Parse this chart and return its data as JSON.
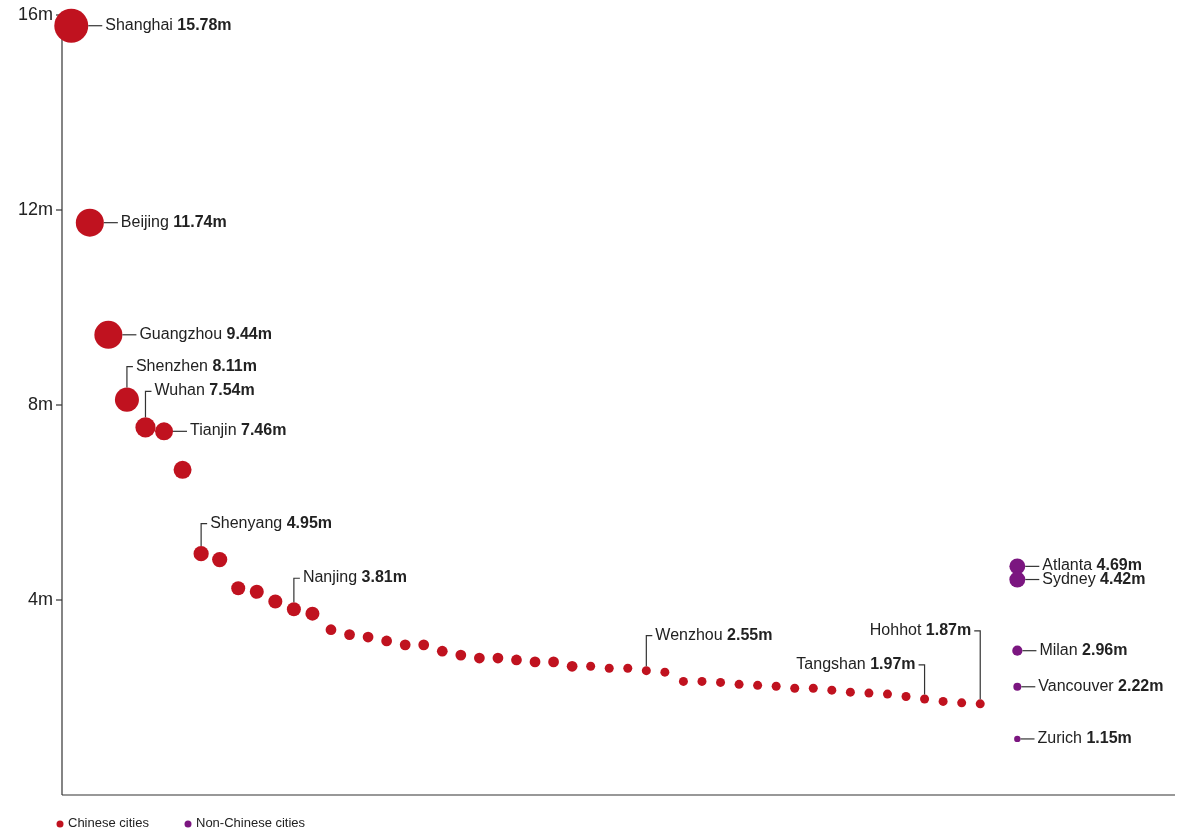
{
  "chart_data": {
    "type": "bubble",
    "categories": [
      null,
      null,
      null,
      null,
      null,
      null,
      null,
      null,
      null,
      null,
      null,
      null,
      null,
      null,
      null,
      null,
      null,
      null,
      null,
      null,
      null,
      null,
      null,
      null,
      null,
      null,
      null,
      null,
      null,
      null,
      null,
      null,
      null,
      null,
      null,
      null,
      null,
      null,
      null,
      null,
      null,
      null,
      null,
      null,
      null,
      null,
      null,
      null,
      null,
      null,
      null,
      null,
      null,
      null,
      null,
      null,
      null,
      null,
      null,
      null
    ],
    "ylim": [
      0,
      16
    ],
    "yticks": [
      {
        "value": 4,
        "label": "4m"
      },
      {
        "value": 8,
        "label": "8m"
      },
      {
        "value": 12,
        "label": "12m"
      },
      {
        "value": 16,
        "label": "16m"
      }
    ],
    "tick_labels": "y",
    "legend": "bottom left",
    "series": [
      {
        "name": "Chinese cities",
        "color": "#c0121f",
        "values": [
          15.78,
          11.74,
          9.44,
          8.11,
          7.54,
          7.46,
          6.67,
          4.95,
          4.83,
          4.24,
          4.17,
          3.97,
          3.81,
          3.72,
          3.39,
          3.29,
          3.24,
          3.16,
          3.08,
          3.08,
          2.95,
          2.87,
          2.81,
          2.81,
          2.77,
          2.73,
          2.73,
          2.64,
          2.64,
          2.6,
          2.6,
          2.55,
          2.52,
          2.33,
          2.33,
          2.31,
          2.27,
          2.25,
          2.23,
          2.19,
          2.19,
          2.15,
          2.11,
          2.09,
          2.07,
          2.02,
          1.97,
          1.92,
          1.89,
          1.87,
          null,
          null,
          null,
          null,
          null,
          null,
          null,
          null,
          null,
          null
        ],
        "sizes": [
          1,
          0.68,
          0.68,
          0.5,
          0.35,
          0.28,
          0.28,
          0.2,
          0.2,
          0.17,
          0.17,
          0.17,
          0.17,
          0.17,
          0.1,
          0.1,
          0.1,
          0.1,
          0.1,
          0.1,
          0.1,
          0.1,
          0.1,
          0.1,
          0.1,
          0.1,
          0.1,
          0.1,
          0.07,
          0.07,
          0.07,
          0.07,
          0.07,
          0.07,
          0.07,
          0.07,
          0.07,
          0.07,
          0.07,
          0.07,
          0.07,
          0.07,
          0.07,
          0.07,
          0.07,
          0.07,
          0.07,
          0.07,
          0.07,
          0.07,
          null,
          null,
          null,
          null,
          null,
          null,
          null,
          null,
          null,
          null
        ]
      },
      {
        "name": "Non-Chinese cities",
        "color": "#7b1680",
        "values": [
          null,
          null,
          null,
          null,
          null,
          null,
          null,
          null,
          null,
          null,
          null,
          null,
          null,
          null,
          null,
          null,
          null,
          null,
          null,
          null,
          null,
          null,
          null,
          null,
          null,
          null,
          null,
          null,
          null,
          null,
          null,
          null,
          null,
          null,
          null,
          null,
          null,
          null,
          null,
          null,
          null,
          null,
          null,
          null,
          null,
          null,
          null,
          null,
          null,
          null,
          null,
          4.69,
          null,
          null,
          null,
          null,
          null,
          null,
          null,
          null
        ],
        "sizes": [
          null,
          null,
          null,
          null,
          null,
          null,
          null,
          null,
          null,
          null,
          null,
          null,
          null,
          null,
          null,
          null,
          null,
          null,
          null,
          null,
          null,
          null,
          null,
          null,
          null,
          null,
          null,
          null,
          null,
          null,
          null,
          null,
          null,
          null,
          null,
          null,
          null,
          null,
          null,
          null,
          null,
          null,
          null,
          null,
          null,
          null,
          null,
          null,
          null,
          null,
          null,
          0.22,
          null,
          null,
          null,
          null,
          null,
          null,
          null,
          null
        ]
      },
      {
        "color": "#7b1680",
        "values": [
          null,
          null,
          null,
          null,
          null,
          null,
          null,
          null,
          null,
          null,
          null,
          null,
          null,
          null,
          null,
          null,
          null,
          null,
          null,
          null,
          null,
          null,
          null,
          null,
          null,
          null,
          null,
          null,
          null,
          null,
          null,
          null,
          null,
          null,
          null,
          null,
          null,
          null,
          null,
          null,
          null,
          null,
          null,
          null,
          null,
          null,
          null,
          null,
          null,
          null,
          null,
          4.42,
          null,
          null,
          null,
          null,
          null,
          null,
          null,
          null
        ],
        "sizes": [
          null,
          null,
          null,
          null,
          null,
          null,
          null,
          null,
          null,
          null,
          null,
          null,
          null,
          null,
          null,
          null,
          null,
          null,
          null,
          null,
          null,
          null,
          null,
          null,
          null,
          null,
          null,
          null,
          null,
          null,
          null,
          null,
          null,
          null,
          null,
          null,
          null,
          null,
          null,
          null,
          null,
          null,
          null,
          null,
          null,
          null,
          null,
          null,
          null,
          null,
          null,
          0.22,
          null,
          null,
          null,
          null,
          null,
          null,
          null,
          null
        ]
      },
      {
        "color": "#7b1680",
        "values": [
          null,
          null,
          null,
          null,
          null,
          null,
          null,
          null,
          null,
          null,
          null,
          null,
          null,
          null,
          null,
          null,
          null,
          null,
          null,
          null,
          null,
          null,
          null,
          null,
          null,
          null,
          null,
          null,
          null,
          null,
          null,
          null,
          null,
          null,
          null,
          null,
          null,
          null,
          null,
          null,
          null,
          null,
          null,
          null,
          null,
          null,
          null,
          null,
          null,
          null,
          null,
          2.96,
          null,
          null,
          null,
          null,
          null,
          null,
          null,
          null
        ],
        "sizes": [
          null,
          null,
          null,
          null,
          null,
          null,
          null,
          null,
          null,
          null,
          null,
          null,
          null,
          null,
          null,
          null,
          null,
          null,
          null,
          null,
          null,
          null,
          null,
          null,
          null,
          null,
          null,
          null,
          null,
          null,
          null,
          null,
          null,
          null,
          null,
          null,
          null,
          null,
          null,
          null,
          null,
          null,
          null,
          null,
          null,
          null,
          null,
          null,
          null,
          null,
          null,
          0.09,
          null,
          null,
          null,
          null,
          null,
          null,
          null,
          null
        ]
      },
      {
        "color": "#7b1680",
        "values": [
          null,
          null,
          null,
          null,
          null,
          null,
          null,
          null,
          null,
          null,
          null,
          null,
          null,
          null,
          null,
          null,
          null,
          null,
          null,
          null,
          null,
          null,
          null,
          null,
          null,
          null,
          null,
          null,
          null,
          null,
          null,
          null,
          null,
          null,
          null,
          null,
          null,
          null,
          null,
          null,
          null,
          null,
          null,
          null,
          null,
          null,
          null,
          null,
          null,
          null,
          null,
          2.22,
          null,
          null,
          null,
          null,
          null,
          null,
          null,
          null
        ],
        "sizes": [
          null,
          null,
          null,
          null,
          null,
          null,
          null,
          null,
          null,
          null,
          null,
          null,
          null,
          null,
          null,
          null,
          null,
          null,
          null,
          null,
          null,
          null,
          null,
          null,
          null,
          null,
          null,
          null,
          null,
          null,
          null,
          null,
          null,
          null,
          null,
          null,
          null,
          null,
          null,
          null,
          null,
          null,
          null,
          null,
          null,
          null,
          null,
          null,
          null,
          null,
          null,
          0.055,
          null,
          null,
          null,
          null,
          null,
          null,
          null,
          null
        ]
      },
      {
        "color": "#7b1680",
        "values": [
          null,
          null,
          null,
          null,
          null,
          null,
          null,
          null,
          null,
          null,
          null,
          null,
          null,
          null,
          null,
          null,
          null,
          null,
          null,
          null,
          null,
          null,
          null,
          null,
          null,
          null,
          null,
          null,
          null,
          null,
          null,
          null,
          null,
          null,
          null,
          null,
          null,
          null,
          null,
          null,
          null,
          null,
          null,
          null,
          null,
          null,
          null,
          null,
          null,
          null,
          null,
          1.15,
          null,
          null,
          null,
          null,
          null,
          null,
          null,
          null
        ],
        "sizes": [
          null,
          null,
          null,
          null,
          null,
          null,
          null,
          null,
          null,
          null,
          null,
          null,
          null,
          null,
          null,
          null,
          null,
          null,
          null,
          null,
          null,
          null,
          null,
          null,
          null,
          null,
          null,
          null,
          null,
          null,
          null,
          null,
          null,
          null,
          null,
          null,
          null,
          null,
          null,
          null,
          null,
          null,
          null,
          null,
          null,
          null,
          null,
          null,
          null,
          null,
          null,
          0.035,
          null,
          null,
          null,
          null,
          null,
          null,
          null,
          null
        ]
      }
    ],
    "annotations": [
      "Shanghai 15.78m",
      "Beijing 11.74m",
      "Guangzhou 9.44m",
      "Shenzhen 8.11m",
      "Wuhan 7.54m",
      "Tianjin 7.46m",
      "Shenyang 4.95m",
      "Nanjing 3.81m",
      "Wenzhou 2.55m",
      "Tangshan 1.97m",
      "Hohhot 1.87m",
      "Atlanta 4.69m",
      "Sydney 4.42m",
      "Milan 2.96m",
      "Vancouver 2.22m",
      "Zurich 1.15m"
    ]
  }
}
